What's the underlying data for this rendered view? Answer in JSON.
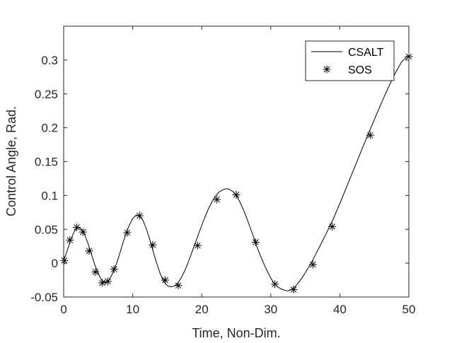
{
  "chart_data": {
    "type": "line",
    "title": "",
    "xlabel": "Time, Non-Dim.",
    "ylabel": "Control Angle, Rad.",
    "xlim": [
      0,
      50
    ],
    "ylim": [
      -0.05,
      0.35
    ],
    "xticks": [
      0,
      10,
      20,
      30,
      40,
      50
    ],
    "xtick_labels": [
      "0",
      "10",
      "20",
      "30",
      "40",
      "50"
    ],
    "yticks": [
      -0.05,
      0,
      0.05,
      0.1,
      0.15,
      0.2,
      0.25,
      0.3
    ],
    "ytick_labels": [
      "-0.05",
      "0",
      "0.05",
      "0.1",
      "0.15",
      "0.2",
      "0.25",
      "0.3"
    ],
    "grid": false,
    "legend_position": "top-right",
    "series": [
      {
        "name": "CSALT",
        "style": "line",
        "color": "#000000",
        "x": [
          0,
          0.5,
          1.0,
          1.5,
          2.0,
          2.5,
          3.0,
          3.5,
          4.0,
          4.5,
          5.0,
          5.5,
          6.0,
          6.5,
          7.0,
          7.5,
          8.0,
          8.5,
          9.0,
          9.5,
          10.0,
          10.5,
          11.0,
          11.5,
          12.0,
          12.5,
          13.0,
          13.5,
          14.0,
          14.5,
          15.0,
          15.5,
          16.0,
          16.5,
          17.0,
          17.5,
          18.0,
          18.5,
          19.0,
          19.5,
          20.0,
          20.5,
          21.0,
          21.5,
          22.0,
          22.5,
          23.0,
          23.5,
          24.0,
          24.5,
          25.0,
          25.5,
          26.0,
          26.5,
          27.0,
          27.5,
          28.0,
          28.5,
          29.0,
          29.5,
          30.0,
          30.5,
          31.0,
          31.5,
          32.0,
          32.5,
          33.0,
          33.5,
          34.0,
          34.5,
          35.0,
          35.5,
          36.0,
          36.5,
          37.0,
          37.5,
          38.0,
          38.5,
          39.0,
          40.0,
          41.0,
          42.0,
          43.0,
          44.0,
          45.0,
          46.0,
          47.0,
          48.0,
          49.0,
          50.0
        ],
        "values": [
          0.004,
          0.018,
          0.034,
          0.046,
          0.053,
          0.051,
          0.043,
          0.03,
          0.014,
          -0.002,
          -0.015,
          -0.025,
          -0.029,
          -0.026,
          -0.017,
          -0.005,
          0.01,
          0.027,
          0.043,
          0.056,
          0.066,
          0.071,
          0.07,
          0.063,
          0.05,
          0.034,
          0.016,
          -0.001,
          -0.016,
          -0.027,
          -0.033,
          -0.035,
          -0.034,
          -0.03,
          -0.022,
          -0.012,
          0.0,
          0.014,
          0.028,
          0.042,
          0.056,
          0.069,
          0.081,
          0.091,
          0.099,
          0.105,
          0.108,
          0.11,
          0.109,
          0.106,
          0.1,
          0.091,
          0.08,
          0.067,
          0.053,
          0.039,
          0.024,
          0.011,
          -0.001,
          -0.012,
          -0.022,
          -0.03,
          -0.035,
          -0.038,
          -0.04,
          -0.041,
          -0.039,
          -0.035,
          -0.029,
          -0.022,
          -0.014,
          -0.006,
          0.003,
          0.013,
          0.023,
          0.033,
          0.043,
          0.054,
          0.064,
          0.088,
          0.113,
          0.138,
          0.163,
          0.188,
          0.212,
          0.236,
          0.259,
          0.28,
          0.298,
          0.307
        ]
      },
      {
        "name": "SOS",
        "style": "asterisk",
        "color": "#000000",
        "x": [
          0.1,
          0.9,
          1.9,
          2.8,
          3.7,
          4.6,
          5.6,
          6.4,
          7.3,
          9.2,
          11.0,
          12.9,
          14.7,
          16.6,
          19.4,
          22.2,
          25.0,
          27.8,
          30.6,
          33.3,
          36.1,
          38.9,
          44.4,
          50.0
        ],
        "values": [
          0.004,
          0.034,
          0.053,
          0.046,
          0.018,
          -0.013,
          -0.029,
          -0.027,
          -0.009,
          0.045,
          0.07,
          0.027,
          -0.025,
          -0.033,
          0.026,
          0.094,
          0.101,
          0.031,
          -0.031,
          -0.039,
          -0.002,
          0.054,
          0.189,
          0.305
        ]
      }
    ]
  }
}
